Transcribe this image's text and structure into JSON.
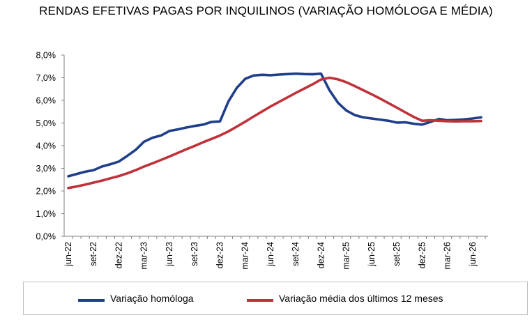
{
  "chart_data": {
    "type": "line",
    "title": "RENDAS EFETIVAS PAGAS POR INQUILINOS (VARIAÇÃO HOMÓLOGA E MÉDIA)",
    "ylim": [
      0,
      8
    ],
    "yticks": [
      "0,0%",
      "1,0%",
      "2,0%",
      "3,0%",
      "4,0%",
      "5,0%",
      "6,0%",
      "7,0%",
      "8,0%"
    ],
    "xtick_labels": [
      "jun-22",
      "set-22",
      "dez-22",
      "mar-23",
      "jun-23",
      "set-23",
      "dez-23",
      "mar-24",
      "jun-24",
      "set-24",
      "dez-24",
      "mar-25",
      "jun-25",
      "set-25",
      "dez-25",
      "mar-26",
      "jun-26"
    ],
    "x": [
      "jun-22",
      "jul-22",
      "ago-22",
      "set-22",
      "out-22",
      "nov-22",
      "dez-22",
      "jan-23",
      "fev-23",
      "mar-23",
      "abr-23",
      "mai-23",
      "jun-23",
      "jul-23",
      "ago-23",
      "set-23",
      "out-23",
      "nov-23",
      "dez-23",
      "jan-24",
      "fev-24",
      "mar-24",
      "abr-24",
      "mai-24",
      "jun-24",
      "jul-24",
      "ago-24",
      "set-24",
      "out-24",
      "nov-24",
      "dez-24",
      "jan-25",
      "fev-25",
      "mar-25",
      "abr-25",
      "mai-25",
      "jun-25",
      "jul-25",
      "ago-25",
      "set-25",
      "out-25",
      "nov-25",
      "dez-25",
      "jan-26",
      "fev-26",
      "mar-26",
      "abr-26",
      "mai-26",
      "jun-26",
      "jul-26"
    ],
    "grid": false,
    "legend_position": "bottom",
    "series": [
      {
        "name": "Variação homóloga",
        "color": "#1f3f8a",
        "values": [
          2.65,
          2.75,
          2.85,
          2.92,
          3.08,
          3.18,
          3.3,
          3.55,
          3.82,
          4.18,
          4.35,
          4.45,
          4.65,
          4.72,
          4.8,
          4.87,
          4.93,
          5.05,
          5.07,
          5.95,
          6.55,
          6.95,
          7.1,
          7.13,
          7.11,
          7.14,
          7.16,
          7.18,
          7.16,
          7.15,
          7.18,
          6.45,
          5.9,
          5.55,
          5.35,
          5.25,
          5.2,
          5.15,
          5.1,
          5.02,
          5.03,
          4.97,
          4.93,
          5.05,
          5.18,
          5.12,
          5.14,
          5.16,
          5.2,
          5.25
        ]
      },
      {
        "name": "Variação média dos últimos 12 meses",
        "color": "#c0323a",
        "values": [
          2.13,
          2.2,
          2.28,
          2.37,
          2.46,
          2.56,
          2.66,
          2.78,
          2.92,
          3.08,
          3.22,
          3.37,
          3.52,
          3.68,
          3.84,
          3.99,
          4.15,
          4.3,
          4.45,
          4.63,
          4.84,
          5.06,
          5.29,
          5.51,
          5.73,
          5.93,
          6.13,
          6.33,
          6.52,
          6.71,
          6.92,
          7.0,
          6.93,
          6.8,
          6.63,
          6.45,
          6.27,
          6.08,
          5.88,
          5.68,
          5.47,
          5.27,
          5.1,
          5.12,
          5.1,
          5.08,
          5.07,
          5.08,
          5.08,
          5.09
        ]
      }
    ]
  }
}
